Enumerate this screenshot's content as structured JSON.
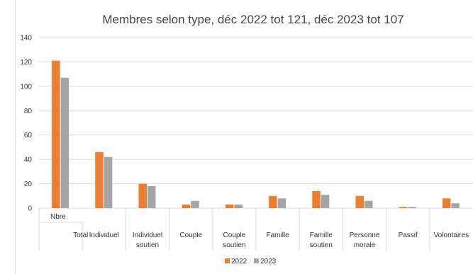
{
  "chart_data": {
    "type": "bar",
    "title": "Membres selon type, déc 2022 tot 121, déc 2023 tot 107",
    "xlabel": "",
    "ylabel": "",
    "ylim": [
      0,
      140
    ],
    "yticks": [
      0,
      20,
      40,
      60,
      80,
      100,
      120,
      140
    ],
    "grid": true,
    "legend_position": "bottom",
    "categories": [
      {
        "label": "Nbre",
        "group": "Total"
      },
      {
        "label": "Individuel",
        "group": ""
      },
      {
        "label": "Individuel soutien",
        "group": ""
      },
      {
        "label": "Couple",
        "group": ""
      },
      {
        "label": "Couple soutien",
        "group": ""
      },
      {
        "label": "Famille",
        "group": ""
      },
      {
        "label": "Famille soutien",
        "group": ""
      },
      {
        "label": "Personne morale",
        "group": ""
      },
      {
        "label": "Passif",
        "group": ""
      },
      {
        "label": "Volontaires",
        "group": ""
      }
    ],
    "series": [
      {
        "name": "2022",
        "color": "#ED7D31",
        "values": [
          121,
          46,
          20,
          3,
          3,
          10,
          14,
          10,
          1,
          8
        ]
      },
      {
        "name": "2023",
        "color": "#A5A5A5",
        "values": [
          107,
          42,
          18,
          6,
          3,
          8,
          11,
          6,
          1,
          4
        ]
      }
    ]
  }
}
